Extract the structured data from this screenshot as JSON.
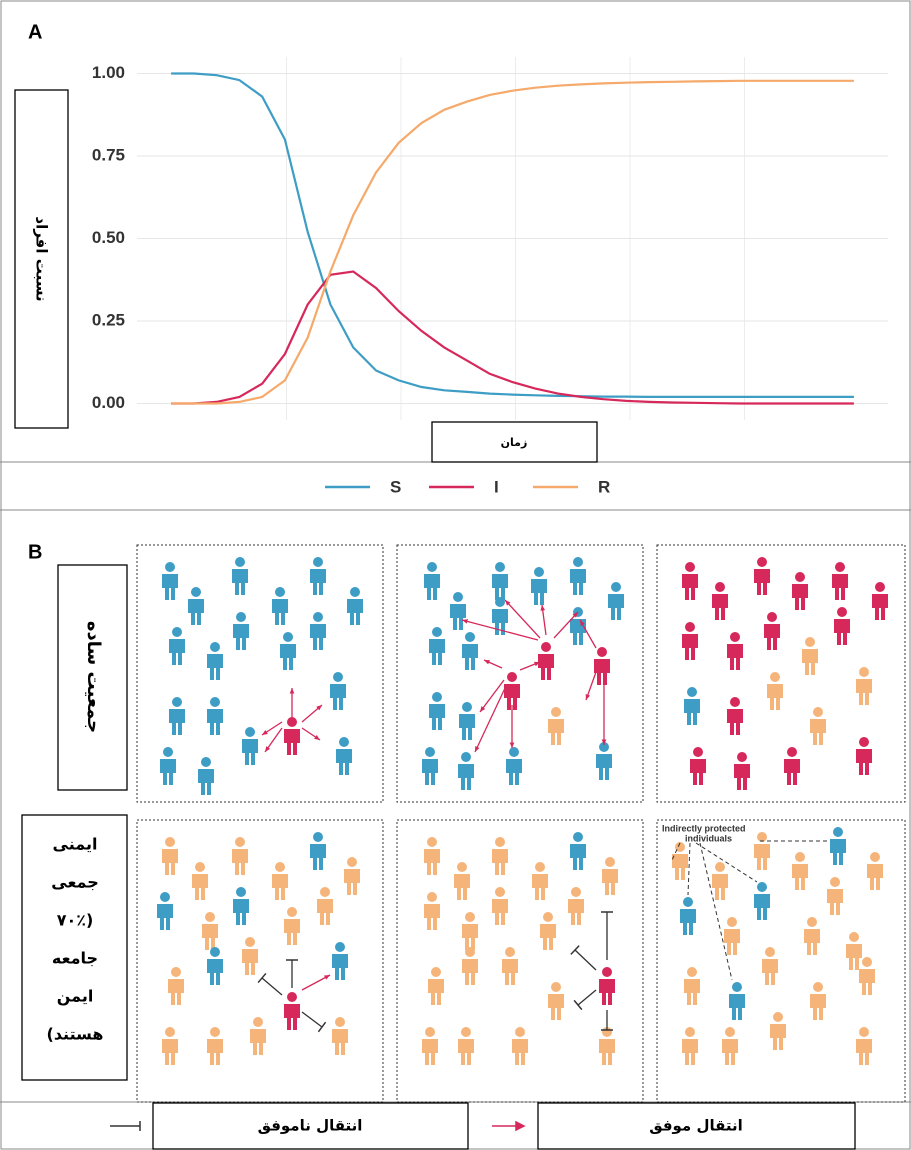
{
  "panel_a": {
    "label": "A"
  },
  "chart_data": {
    "type": "line",
    "x_label": "زمان",
    "y_label": "نسبت افراد",
    "x": [
      0,
      1,
      2,
      3,
      4,
      5,
      6,
      7,
      8,
      9,
      10,
      11,
      12,
      13,
      14,
      15,
      16,
      17,
      18,
      19,
      20,
      21,
      22,
      23,
      24,
      25,
      26,
      27,
      28,
      29,
      30
    ],
    "series": [
      {
        "name": "S",
        "color": "#3d9dc4",
        "values": [
          1.0,
          1.0,
          0.995,
          0.98,
          0.93,
          0.8,
          0.52,
          0.3,
          0.17,
          0.1,
          0.07,
          0.05,
          0.04,
          0.035,
          0.03,
          0.027,
          0.025,
          0.023,
          0.022,
          0.021,
          0.021,
          0.02,
          0.02,
          0.02,
          0.02,
          0.02,
          0.02,
          0.02,
          0.02,
          0.02,
          0.02
        ]
      },
      {
        "name": "I",
        "color": "#d6285a",
        "values": [
          0,
          0,
          0.005,
          0.02,
          0.06,
          0.15,
          0.3,
          0.39,
          0.4,
          0.35,
          0.28,
          0.22,
          0.17,
          0.13,
          0.09,
          0.065,
          0.045,
          0.03,
          0.02,
          0.013,
          0.008,
          0.005,
          0.003,
          0.002,
          0.001,
          0,
          0,
          0,
          0,
          0,
          0
        ]
      },
      {
        "name": "R",
        "color": "#f5a96a",
        "values": [
          0,
          0,
          0,
          0.005,
          0.02,
          0.07,
          0.2,
          0.4,
          0.57,
          0.7,
          0.79,
          0.85,
          0.89,
          0.915,
          0.935,
          0.948,
          0.957,
          0.963,
          0.967,
          0.97,
          0.972,
          0.974,
          0.975,
          0.976,
          0.977,
          0.978,
          0.978,
          0.978,
          0.978,
          0.978,
          0.978
        ]
      }
    ],
    "xlim": [
      -1.5,
      31.5
    ],
    "ylim": [
      -0.05,
      1.05
    ],
    "yticks": [
      {
        "value": 0,
        "label": "0.00"
      },
      0.25,
      {
        "value": 0.5,
        "label": "0.50"
      },
      0.75,
      {
        "value": 1,
        "label": "1.00"
      }
    ],
    "grid": true
  },
  "panel_b": {
    "label": "B",
    "row_labels": [
      "جمعیت ساده",
      [
        "ایمنی",
        "جمعی",
        "(۷۰٪",
        "جامعه",
        "ایمن",
        "هستند)"
      ]
    ],
    "annotation": [
      "Indirectly protected",
      "individuals"
    ],
    "legend": [
      "انتقال ناموفق",
      "انتقال موفق"
    ]
  }
}
